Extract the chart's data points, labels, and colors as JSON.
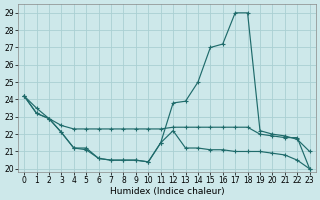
{
  "xlabel": "Humidex (Indice chaleur)",
  "bg_color": "#cde8ea",
  "grid_color": "#aad0d3",
  "line_color": "#1f6b6b",
  "x": [
    0,
    1,
    2,
    3,
    4,
    5,
    6,
    7,
    8,
    9,
    10,
    11,
    12,
    13,
    14,
    15,
    16,
    17,
    18,
    19,
    20,
    21,
    22,
    23
  ],
  "curve_high": [
    24.2,
    23.5,
    22.9,
    22.1,
    21.2,
    21.2,
    20.6,
    20.5,
    20.5,
    20.5,
    20.4,
    21.5,
    23.8,
    23.9,
    25.0,
    27.0,
    27.2,
    29.0,
    29.0,
    22.2,
    22.0,
    21.9,
    21.7,
    21.0
  ],
  "curve_mid": [
    24.2,
    23.2,
    22.9,
    22.5,
    22.3,
    22.3,
    22.3,
    22.3,
    22.3,
    22.3,
    22.3,
    22.3,
    22.4,
    22.4,
    22.4,
    22.4,
    22.4,
    22.4,
    22.4,
    22.0,
    21.9,
    21.8,
    21.8,
    20.0
  ],
  "curve_low": [
    24.2,
    23.2,
    22.9,
    22.1,
    21.2,
    21.1,
    20.6,
    20.5,
    20.5,
    20.5,
    20.4,
    21.5,
    22.2,
    21.2,
    21.2,
    21.1,
    21.1,
    21.0,
    21.0,
    21.0,
    20.9,
    20.8,
    20.5,
    20.0
  ],
  "ylim_min": 19.8,
  "ylim_max": 29.5,
  "xlim_min": -0.5,
  "xlim_max": 23.5,
  "yticks": [
    20,
    21,
    22,
    23,
    24,
    25,
    26,
    27,
    28,
    29
  ],
  "xticks": [
    0,
    1,
    2,
    3,
    4,
    5,
    6,
    7,
    8,
    9,
    10,
    11,
    12,
    13,
    14,
    15,
    16,
    17,
    18,
    19,
    20,
    21,
    22,
    23
  ],
  "tick_fontsize": 5.5,
  "xlabel_fontsize": 6.5,
  "lw": 0.85,
  "marker_size": 2.8
}
